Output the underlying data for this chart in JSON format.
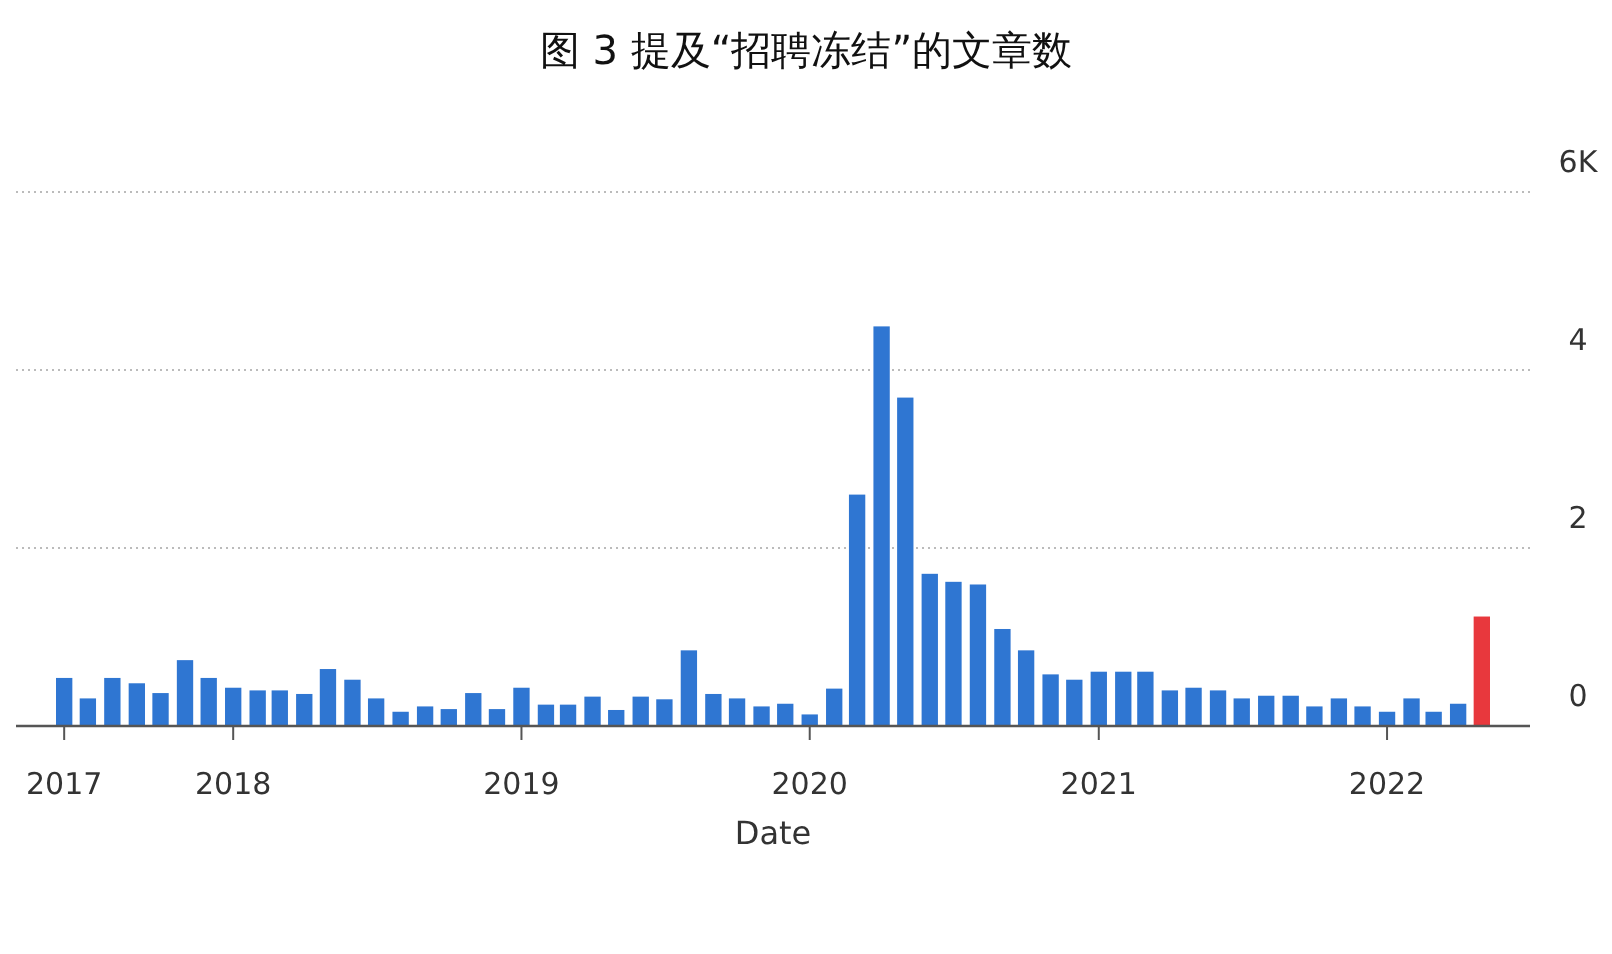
{
  "chart_data": {
    "type": "bar",
    "title": "图 3 提及“招聘冻结”的文章数",
    "xlabel": "Date",
    "x": [
      "2017-06",
      "2017-07",
      "2017-08",
      "2017-09",
      "2017-10",
      "2017-11",
      "2017-12",
      "2018-01",
      "2018-02",
      "2018-03",
      "2018-04",
      "2018-05",
      "2018-06",
      "2018-07",
      "2018-08",
      "2018-09",
      "2018-10",
      "2018-11",
      "2018-12",
      "2019-01",
      "2019-02",
      "2019-03",
      "2019-04",
      "2019-05",
      "2019-06",
      "2019-07",
      "2019-08",
      "2019-09",
      "2019-10",
      "2019-11",
      "2019-12",
      "2020-01",
      "2020-02",
      "2020-03",
      "2020-04",
      "2020-05",
      "2020-06",
      "2020-07",
      "2020-08",
      "2020-09",
      "2020-10",
      "2020-11",
      "2020-12",
      "2021-01",
      "2021-02",
      "2021-03",
      "2021-04",
      "2021-05",
      "2021-06",
      "2021-07",
      "2021-08",
      "2021-09",
      "2021-10",
      "2021-11",
      "2021-12",
      "2022-01",
      "2022-02",
      "2022-03",
      "2022-04",
      "2022-05"
    ],
    "values": [
      0.54,
      0.31,
      0.54,
      0.48,
      0.37,
      0.74,
      0.54,
      0.43,
      0.4,
      0.4,
      0.36,
      0.64,
      0.52,
      0.31,
      0.16,
      0.22,
      0.19,
      0.37,
      0.19,
      0.43,
      0.24,
      0.24,
      0.33,
      0.18,
      0.33,
      0.3,
      0.85,
      0.36,
      0.31,
      0.22,
      0.25,
      0.13,
      0.42,
      2.6,
      4.49,
      3.69,
      1.71,
      1.62,
      1.59,
      1.09,
      0.85,
      0.58,
      0.52,
      0.61,
      0.61,
      0.61,
      0.4,
      0.43,
      0.4,
      0.31,
      0.34,
      0.34,
      0.22,
      0.31,
      0.22,
      0.16,
      0.31,
      0.16,
      0.25,
      1.23
    ],
    "colors": [
      "#2f76d2",
      "#2f76d2",
      "#2f76d2",
      "#2f76d2",
      "#2f76d2",
      "#2f76d2",
      "#2f76d2",
      "#2f76d2",
      "#2f76d2",
      "#2f76d2",
      "#2f76d2",
      "#2f76d2",
      "#2f76d2",
      "#2f76d2",
      "#2f76d2",
      "#2f76d2",
      "#2f76d2",
      "#2f76d2",
      "#2f76d2",
      "#2f76d2",
      "#2f76d2",
      "#2f76d2",
      "#2f76d2",
      "#2f76d2",
      "#2f76d2",
      "#2f76d2",
      "#2f76d2",
      "#2f76d2",
      "#2f76d2",
      "#2f76d2",
      "#2f76d2",
      "#2f76d2",
      "#2f76d2",
      "#2f76d2",
      "#2f76d2",
      "#2f76d2",
      "#2f76d2",
      "#2f76d2",
      "#2f76d2",
      "#2f76d2",
      "#2f76d2",
      "#2f76d2",
      "#2f76d2",
      "#2f76d2",
      "#2f76d2",
      "#2f76d2",
      "#2f76d2",
      "#2f76d2",
      "#2f76d2",
      "#2f76d2",
      "#2f76d2",
      "#2f76d2",
      "#2f76d2",
      "#2f76d2",
      "#2f76d2",
      "#2f76d2",
      "#2f76d2",
      "#2f76d2",
      "#2f76d2",
      "#e8383d"
    ],
    "xlim": [
      "2017-04",
      "2022-07"
    ],
    "xticks": [
      {
        "value": "2017-06",
        "label": "2017"
      },
      {
        "value": "2018-01",
        "label": "2018"
      },
      {
        "value": "2019-01",
        "label": "2019"
      },
      {
        "value": "2020-01",
        "label": "2020"
      },
      {
        "value": "2021-01",
        "label": "2021"
      },
      {
        "value": "2022-01",
        "label": "2022"
      }
    ],
    "ylim": [
      0,
      6
    ],
    "yticks": [
      0,
      2,
      4,
      {
        "value": 6,
        "label": "6K"
      }
    ],
    "grid": "y"
  }
}
